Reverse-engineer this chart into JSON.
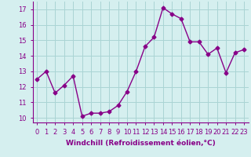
{
  "x": [
    0,
    1,
    2,
    3,
    4,
    5,
    6,
    7,
    8,
    9,
    10,
    11,
    12,
    13,
    14,
    15,
    16,
    17,
    18,
    19,
    20,
    21,
    22,
    23
  ],
  "y": [
    12.5,
    13.0,
    11.6,
    12.1,
    12.7,
    10.1,
    10.3,
    10.3,
    10.4,
    10.8,
    11.7,
    13.0,
    14.6,
    15.2,
    17.1,
    16.7,
    16.4,
    14.9,
    14.9,
    14.1,
    14.5,
    12.9,
    14.2,
    14.4
  ],
  "line_color": "#880088",
  "marker": "D",
  "marker_size": 2.5,
  "bg_color": "#d5efef",
  "grid_color": "#aad4d4",
  "ylabel_vals": [
    10,
    11,
    12,
    13,
    14,
    15,
    16,
    17
  ],
  "ylim": [
    9.7,
    17.5
  ],
  "xlim": [
    -0.5,
    23.5
  ],
  "xlabel": "Windchill (Refroidissement éolien,°C)",
  "xlabel_fontsize": 6.5,
  "tick_fontsize": 6.0,
  "line_width": 1.0
}
